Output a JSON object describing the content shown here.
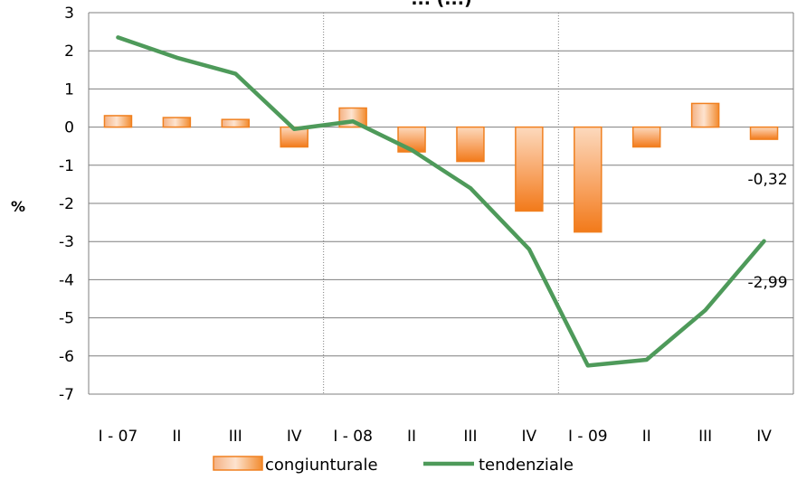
{
  "chart_data": {
    "type": "bar",
    "title": "... (...)",
    "ylabel": "%",
    "ylim": [
      -7,
      3
    ],
    "yticks": [
      3,
      2,
      1,
      0,
      -1,
      -2,
      -3,
      -4,
      -5,
      -6,
      -7
    ],
    "categories": [
      "I - 07",
      "II",
      "III",
      "IV",
      "I - 08",
      "II",
      "III",
      "IV",
      "I - 09",
      "II",
      "III",
      "IV"
    ],
    "grid": true,
    "legend_position": "bottom",
    "series": [
      {
        "name": "congiunturale",
        "type": "bar",
        "color": "#f58220",
        "values": [
          0.3,
          0.25,
          0.2,
          -0.52,
          0.5,
          -0.65,
          -0.9,
          -2.2,
          -2.75,
          -0.52,
          0.62,
          -0.32
        ]
      },
      {
        "name": "tendenziale",
        "type": "line",
        "color": "#4e9a5a",
        "values": [
          2.35,
          1.82,
          1.4,
          -0.05,
          0.15,
          -0.6,
          -1.6,
          -3.2,
          -6.25,
          -6.1,
          -4.8,
          -2.99
        ]
      }
    ],
    "annotations": [
      {
        "series": 0,
        "index": 11,
        "text": "-0,32"
      },
      {
        "series": 1,
        "index": 11,
        "text": "-2,99"
      }
    ]
  }
}
